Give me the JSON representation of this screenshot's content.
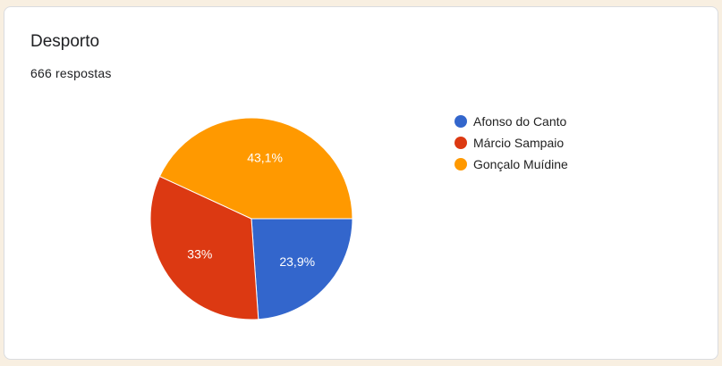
{
  "title": "Desporto",
  "responses": "666 respostas",
  "chart_data": {
    "type": "pie",
    "categories": [
      "Afonso do Canto",
      "Márcio Sampaio",
      "Gonçalo Muídine"
    ],
    "values": [
      23.9,
      33,
      43.1
    ],
    "labels": [
      "23,9%",
      "33%",
      "43,1%"
    ],
    "colors": [
      "#3366cc",
      "#dc3912",
      "#ff9900"
    ],
    "legend": "right"
  }
}
